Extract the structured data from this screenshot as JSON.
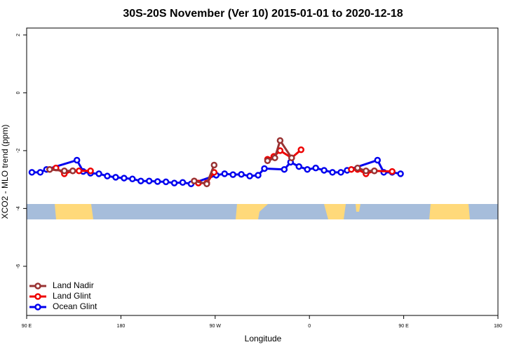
{
  "chart_data": {
    "type": "line",
    "title": "30S-20S November (Ver 10)   2015-01-01 to 2020-12-18",
    "xlabel": "Longitude",
    "ylabel": "XCO2 - MLO trend (ppm)",
    "xlim": [
      90,
      540
    ],
    "ylim": [
      -7.7,
      2.24
    ],
    "xticks": [
      {
        "value": 90,
        "label": "90 E"
      },
      180,
      {
        "value": 270,
        "label": "90 W"
      },
      {
        "value": 360,
        "label": "0"
      },
      {
        "value": 450,
        "label": "90 E"
      },
      {
        "value": 540,
        "label": "180"
      }
    ],
    "yticks": [
      2,
      0,
      -2,
      -4,
      -6
    ],
    "legend": "bottom-left",
    "series": [
      {
        "name": "Land Nadir",
        "color": "#993333",
        "x": [
          112,
          126,
          134,
          null,
          250,
          262,
          269,
          null,
          320,
          327,
          332,
          343,
          null,
          406,
          414,
          422
        ],
        "values": [
          -2.65,
          -2.7,
          -2.7,
          null,
          -3.05,
          -3.15,
          -2.5,
          null,
          -2.35,
          -2.25,
          -1.65,
          -2.25,
          null,
          -2.6,
          -2.7,
          -2.7
        ]
      },
      {
        "name": "Land Glint",
        "color": "#ee0000",
        "x": [
          112,
          118,
          126,
          134,
          140,
          151,
          null,
          250,
          254,
          262,
          269,
          null,
          320,
          326,
          332,
          343,
          352,
          null,
          400,
          406,
          414,
          422,
          439
        ],
        "values": [
          -2.65,
          -2.6,
          -2.8,
          -2.7,
          -2.7,
          -2.7,
          null,
          -3.05,
          -3.12,
          -3.12,
          -2.75,
          null,
          -2.3,
          -2.2,
          -2.0,
          -2.25,
          -1.97,
          null,
          -2.65,
          -2.65,
          -2.8,
          -2.7,
          -2.72
        ]
      },
      {
        "name": "Ocean Glint",
        "color": "#0000ee",
        "x": [
          95,
          103,
          109,
          138,
          144,
          151,
          159,
          167,
          175,
          183,
          191,
          199,
          207,
          215,
          223,
          231,
          239,
          247,
          271,
          279,
          287,
          295,
          303,
          311,
          317,
          336,
          342,
          350,
          358,
          366,
          374,
          382,
          390,
          396,
          425,
          431,
          439,
          447
        ],
        "values": [
          -2.75,
          -2.75,
          -2.65,
          -2.33,
          -2.72,
          -2.78,
          -2.8,
          -2.88,
          -2.92,
          -2.95,
          -2.98,
          -3.05,
          -3.05,
          -3.07,
          -3.08,
          -3.12,
          -3.1,
          -3.15,
          -2.85,
          -2.8,
          -2.83,
          -2.82,
          -2.88,
          -2.85,
          -2.62,
          -2.65,
          -2.4,
          -2.55,
          -2.65,
          -2.6,
          -2.68,
          -2.75,
          -2.75,
          -2.68,
          -2.33,
          -2.75,
          -2.75,
          -2.8
        ]
      }
    ]
  }
}
